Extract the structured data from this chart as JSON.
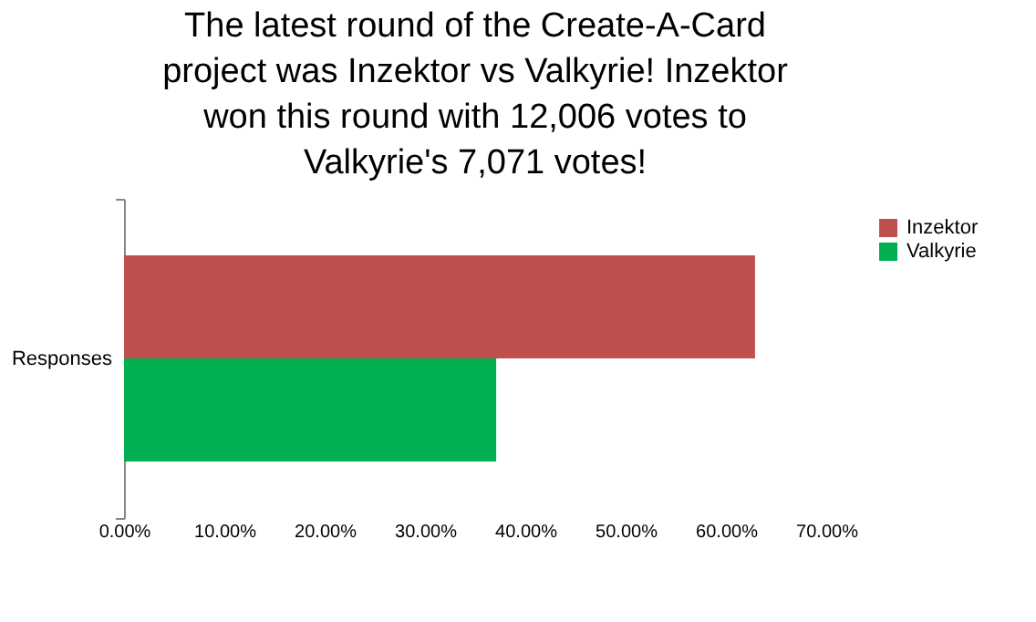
{
  "chart_data": {
    "type": "bar",
    "orientation": "horizontal",
    "title": "The latest round of the Create-A-Card project was Inzektor vs Valkyrie! Inzektor won this round with 12,006 votes to Valkyrie's 7,071 votes!",
    "categories": [
      "Responses"
    ],
    "series": [
      {
        "name": "Inzektor",
        "color": "#c0504d",
        "values": [
          62.9
        ]
      },
      {
        "name": "Valkyrie",
        "color": "#00b050",
        "values": [
          37.1
        ]
      }
    ],
    "xlim": [
      0,
      70
    ],
    "xticks": [
      {
        "value": 0,
        "label": "0.00%"
      },
      {
        "value": 10,
        "label": "10.00%"
      },
      {
        "value": 20,
        "label": "20.00%"
      },
      {
        "value": 30,
        "label": "30.00%"
      },
      {
        "value": 40,
        "label": "40.00%"
      },
      {
        "value": 50,
        "label": "50.00%"
      },
      {
        "value": 60,
        "label": "60.00%"
      },
      {
        "value": 70,
        "label": "70.00%"
      }
    ],
    "grid": false,
    "legend": "right"
  }
}
